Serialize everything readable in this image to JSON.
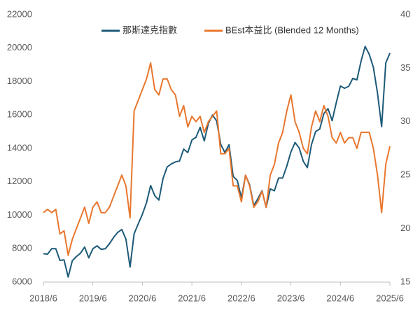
{
  "chart_data": {
    "type": "line",
    "legend": "top",
    "x": [
      "2018/6",
      "2018/7",
      "2018/8",
      "2018/9",
      "2018/10",
      "2018/11",
      "2018/12",
      "2019/1",
      "2019/2",
      "2019/3",
      "2019/4",
      "2019/5",
      "2019/6",
      "2019/7",
      "2019/8",
      "2019/9",
      "2019/10",
      "2019/11",
      "2019/12",
      "2020/1",
      "2020/2",
      "2020/3",
      "2020/4",
      "2020/5",
      "2020/6",
      "2020/7",
      "2020/8",
      "2020/9",
      "2020/10",
      "2020/11",
      "2020/12",
      "2021/1",
      "2021/2",
      "2021/3",
      "2021/4",
      "2021/5",
      "2021/6",
      "2021/7",
      "2021/8",
      "2021/9",
      "2021/10",
      "2021/11",
      "2021/12",
      "2022/1",
      "2022/2",
      "2022/3",
      "2022/4",
      "2022/5",
      "2022/6",
      "2022/7",
      "2022/8",
      "2022/9",
      "2022/10",
      "2022/11",
      "2022/12",
      "2023/1",
      "2023/2",
      "2023/3",
      "2023/4",
      "2023/5",
      "2023/6",
      "2023/7",
      "2023/8",
      "2023/9",
      "2023/10",
      "2023/11",
      "2023/12",
      "2024/1",
      "2024/2",
      "2024/3",
      "2024/4",
      "2024/5",
      "2024/6",
      "2024/7",
      "2024/8",
      "2024/9",
      "2024/10",
      "2024/11",
      "2024/12",
      "2025/1",
      "2025/2",
      "2025/3",
      "2025/4",
      "2025/5",
      "2025/6"
    ],
    "xlim": [
      "2018/6",
      "2025/6"
    ],
    "xticks": [
      "2018/6",
      "2019/6",
      "2020/6",
      "2021/6",
      "2022/6",
      "2023/6",
      "2024/6",
      "2025/6"
    ],
    "ylim": [
      6000,
      22000
    ],
    "yticks": [
      6000,
      8000,
      10000,
      12000,
      14000,
      16000,
      18000,
      20000,
      22000
    ],
    "y2lim": [
      15,
      40
    ],
    "y2ticks": [
      15,
      20,
      25,
      30,
      35,
      40
    ],
    "series": [
      {
        "name": "那斯達克指數",
        "color": "#1d5a78",
        "values": [
          7700,
          7670,
          8000,
          8000,
          7300,
          7330,
          6300,
          7280,
          7530,
          7730,
          8100,
          7450,
          8000,
          8170,
          7960,
          8000,
          8290,
          8670,
          8970,
          9150,
          8570,
          6900,
          8890,
          9490,
          10060,
          10750,
          11780,
          11170,
          10910,
          12200,
          12890,
          13070,
          13190,
          13250,
          13960,
          13750,
          14500,
          14670,
          15260,
          14450,
          15500,
          16000,
          15640,
          14240,
          13750,
          14220,
          12330,
          12080,
          11030,
          12390,
          11820,
          10580,
          10990,
          11470,
          10470,
          11580,
          11460,
          12220,
          12230,
          12940,
          13790,
          14350,
          14030,
          13220,
          12850,
          14230,
          15010,
          15160,
          16090,
          16380,
          15660,
          16740,
          17730,
          17600,
          17710,
          18190,
          18100,
          19220,
          20100,
          19630,
          18850,
          17300,
          15300,
          19110,
          19700
        ]
      },
      {
        "name": "BEst本益比 (Blended 12 Months)",
        "color": "#e8772e",
        "axis": "y2",
        "values": [
          21.5,
          21.8,
          21.5,
          21.8,
          19.5,
          19.8,
          17.5,
          19,
          20,
          21,
          22,
          20.5,
          22,
          22.5,
          21.5,
          21.5,
          22,
          23,
          24,
          25,
          24,
          21,
          31,
          32,
          33,
          34,
          35.5,
          33,
          32.5,
          34,
          34,
          33,
          32.5,
          30.5,
          31.5,
          29.5,
          30.5,
          30,
          30.5,
          29,
          30,
          30.5,
          31,
          27,
          27,
          27.5,
          24,
          24,
          22.5,
          25,
          24,
          22,
          22.5,
          23.5,
          22,
          25,
          26,
          28,
          29,
          31,
          32.5,
          30,
          29,
          27.5,
          27,
          29.5,
          31,
          30,
          31.5,
          30.5,
          28.5,
          28,
          29,
          28,
          28.5,
          28.5,
          27.5,
          29,
          29,
          29,
          27.5,
          25,
          21.5,
          26,
          27.7
        ]
      }
    ]
  }
}
